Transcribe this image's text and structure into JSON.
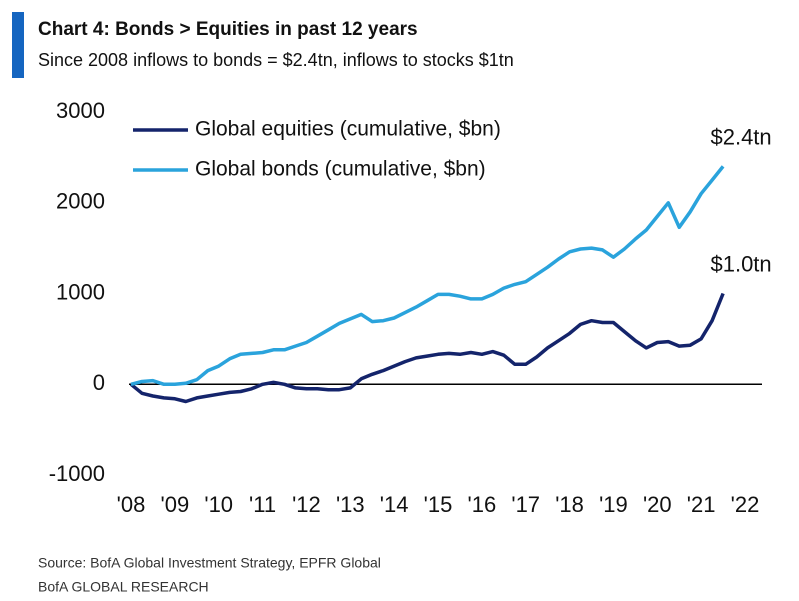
{
  "chart_data": {
    "type": "line",
    "title": "Chart 4: Bonds > Equities in past 12 years",
    "subtitle": "Since 2008 inflows to bonds = $2.4tn, inflows to stocks $1tn",
    "source": "Source:  BofA Global Investment Strategy, EPFR Global",
    "brand": "BofA GLOBAL RESEARCH",
    "x": [
      2008,
      2008.25,
      2008.5,
      2008.75,
      2009,
      2009.25,
      2009.5,
      2009.75,
      2010,
      2010.25,
      2010.5,
      2010.75,
      2011,
      2011.25,
      2011.5,
      2011.75,
      2012,
      2012.25,
      2012.5,
      2012.75,
      2013,
      2013.25,
      2013.5,
      2013.75,
      2014,
      2014.25,
      2014.5,
      2014.75,
      2015,
      2015.25,
      2015.5,
      2015.75,
      2016,
      2016.25,
      2016.5,
      2016.75,
      2017,
      2017.25,
      2017.5,
      2017.75,
      2018,
      2018.25,
      2018.5,
      2018.75,
      2019,
      2019.25,
      2019.5,
      2019.75,
      2020,
      2020.25,
      2020.5,
      2020.75,
      2021,
      2021.25,
      2021.5
    ],
    "series": [
      {
        "name": "Global equities (cumulative, $bn)",
        "color": "#14246b",
        "values": [
          0,
          -100,
          -130,
          -150,
          -160,
          -190,
          -150,
          -130,
          -110,
          -90,
          -80,
          -50,
          0,
          20,
          0,
          -40,
          -50,
          -50,
          -60,
          -60,
          -40,
          60,
          110,
          150,
          200,
          250,
          290,
          310,
          330,
          340,
          330,
          350,
          330,
          360,
          320,
          220,
          220,
          300,
          400,
          480,
          560,
          660,
          700,
          680,
          680,
          580,
          480,
          400,
          460,
          470,
          420,
          430,
          500,
          700,
          1000
        ]
      },
      {
        "name": "Global bonds (cumulative, $bn)",
        "color": "#2aa3dc",
        "values": [
          0,
          30,
          40,
          0,
          0,
          10,
          50,
          150,
          200,
          280,
          330,
          340,
          350,
          380,
          380,
          420,
          460,
          530,
          600,
          670,
          720,
          770,
          690,
          700,
          730,
          790,
          850,
          920,
          990,
          990,
          970,
          940,
          940,
          990,
          1060,
          1100,
          1130,
          1210,
          1290,
          1380,
          1460,
          1490,
          1500,
          1480,
          1400,
          1490,
          1600,
          1700,
          1850,
          2000,
          1730,
          1900,
          2100,
          2250,
          2400
        ]
      }
    ],
    "annotations": [
      "$2.4tn",
      "$1.0tn"
    ],
    "xlim": [
      2008,
      2022
    ],
    "xticks": [
      {
        "value": 2008,
        "label": "'08"
      },
      {
        "value": 2009,
        "label": "'09"
      },
      {
        "value": 2010,
        "label": "'10"
      },
      {
        "value": 2011,
        "label": "'11"
      },
      {
        "value": 2012,
        "label": "'12"
      },
      {
        "value": 2013,
        "label": "'13"
      },
      {
        "value": 2014,
        "label": "'14"
      },
      {
        "value": 2015,
        "label": "'15"
      },
      {
        "value": 2016,
        "label": "'16"
      },
      {
        "value": 2017,
        "label": "'17"
      },
      {
        "value": 2018,
        "label": "'18"
      },
      {
        "value": 2019,
        "label": "'19"
      },
      {
        "value": 2020,
        "label": "'20"
      },
      {
        "value": 2021,
        "label": "'21"
      },
      {
        "value": 2022,
        "label": "'22"
      }
    ],
    "ylim": [
      -1000,
      3000
    ],
    "yticks": [
      3000,
      2000,
      1000,
      0,
      -1000
    ],
    "legend": "top-left"
  }
}
